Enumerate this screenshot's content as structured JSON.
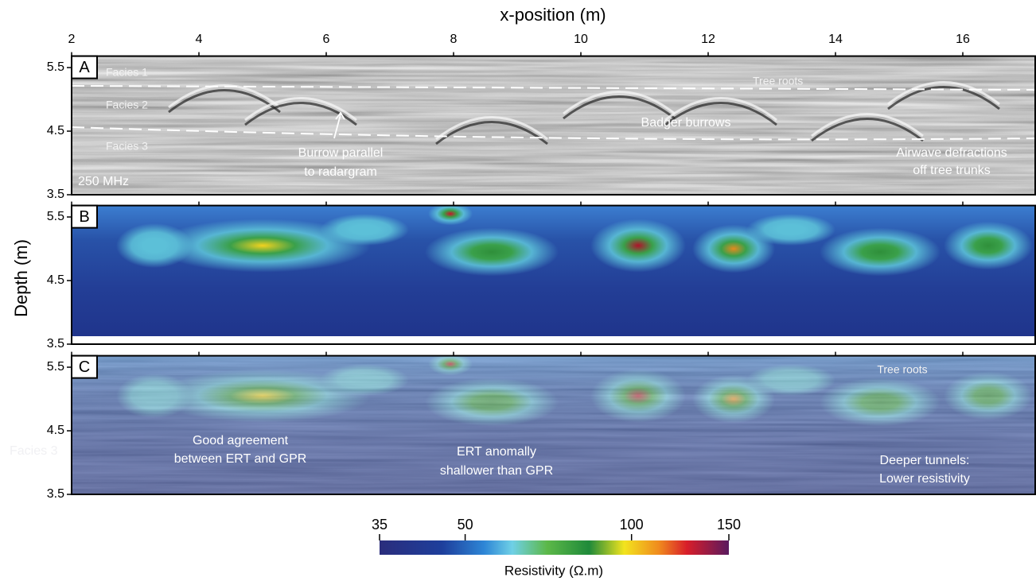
{
  "figure": {
    "x_axis": {
      "label": "x-position (m)",
      "xlim": [
        2,
        17.15
      ],
      "xticks": [
        2,
        4,
        6,
        8,
        10,
        12,
        14,
        16
      ]
    },
    "y_axis": {
      "label": "Depth (m)",
      "ylim": [
        3.5,
        5.68
      ],
      "yticks": [
        3.5,
        4.5,
        5.5
      ]
    },
    "panels": [
      {
        "label": "A",
        "annotations": [
          "Facies 1",
          "Facies 2",
          "Facies 3",
          "Tree roots",
          "Burrow parallel",
          "to radargram",
          "Badger burrows",
          "Airwave defractions",
          "off tree trunks",
          "250 MHz"
        ]
      },
      {
        "label": "B"
      },
      {
        "label": "C",
        "annotations": [
          "Tree roots",
          "Good agreement",
          "between ERT and GPR",
          "ERT anomally",
          "shallower than GPR",
          "Deeper tunnels:",
          "Lower resistivity",
          "Facies 3"
        ]
      }
    ],
    "colorbar": {
      "label": "Resistivity (Ω.m)",
      "range": [
        35,
        150
      ],
      "ticks": [
        35,
        50,
        100,
        150
      ],
      "log": true
    }
  }
}
